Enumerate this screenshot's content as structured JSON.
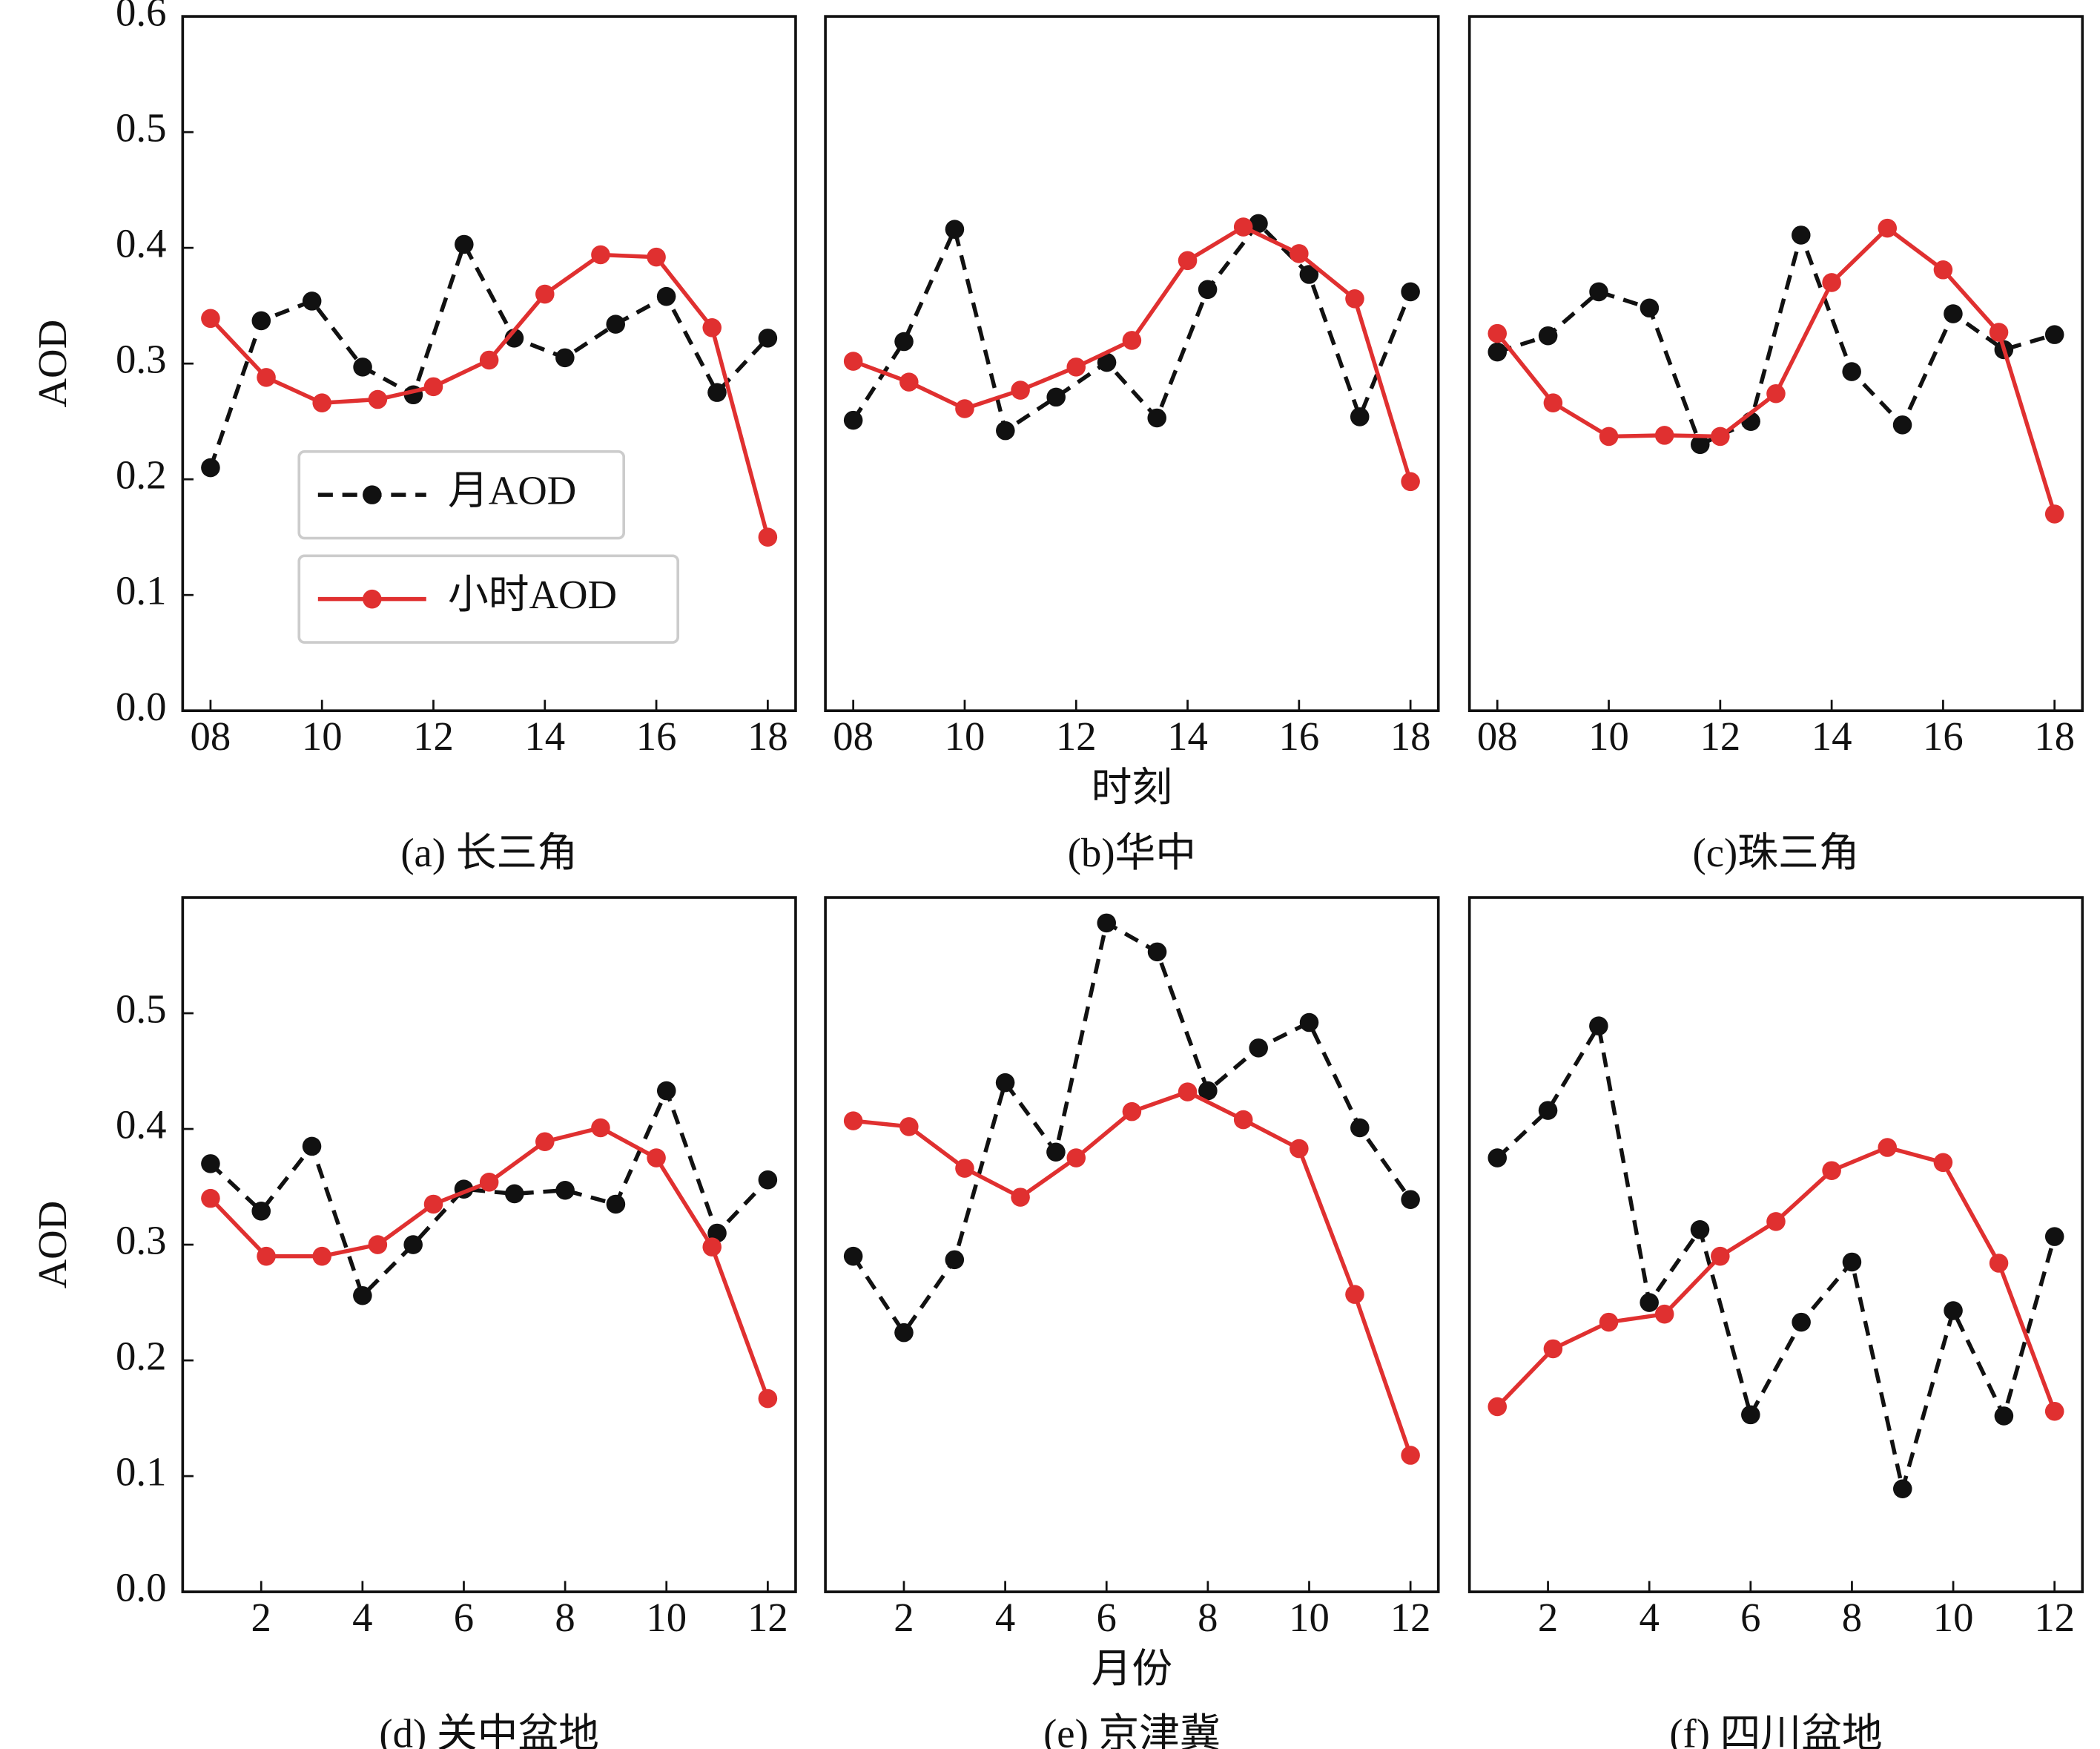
{
  "chart_data": [
    {
      "type": "line",
      "caption": "(a) 长三角",
      "ylabel": "AOD",
      "legend": "center left",
      "xlim": [
        7.5,
        18.5
      ],
      "ylim": [
        0,
        0.6
      ],
      "xticks": [
        {
          "value": 8,
          "label": "08"
        },
        10,
        12,
        14,
        16,
        18
      ],
      "yticks": [
        {
          "value": 0,
          "label": "0.0"
        },
        0.1,
        0.2,
        0.3,
        0.4,
        0.5,
        0.6
      ],
      "series": [
        {
          "name": "月AOD",
          "color": "#111111",
          "linestyle": "dashed",
          "x": [
            8,
            8.91,
            9.82,
            10.73,
            11.64,
            12.55,
            13.45,
            14.36,
            15.27,
            16.18,
            17.09,
            18
          ],
          "values": [
            0.21,
            0.337,
            0.354,
            0.297,
            0.273,
            0.403,
            0.322,
            0.305,
            0.334,
            0.358,
            0.275,
            0.322
          ]
        },
        {
          "name": "小时AOD",
          "color": "#e03030",
          "linestyle": "solid",
          "x": [
            8,
            9,
            10,
            11,
            12,
            13,
            14,
            15,
            16,
            17,
            18
          ],
          "values": [
            0.339,
            0.288,
            0.266,
            0.269,
            0.28,
            0.303,
            0.36,
            0.394,
            0.392,
            0.331,
            0.15
          ]
        }
      ]
    },
    {
      "type": "line",
      "caption": "(b)华中",
      "xlabel": "时刻",
      "xlim": [
        7.5,
        18.5
      ],
      "ylim": [
        0,
        0.6
      ],
      "xticks": [
        {
          "value": 8,
          "label": "08"
        },
        10,
        12,
        14,
        16,
        18
      ],
      "series": [
        {
          "name": "月AOD",
          "color": "#111111",
          "linestyle": "dashed",
          "x": [
            8,
            8.91,
            9.82,
            10.73,
            11.64,
            12.55,
            13.45,
            14.36,
            15.27,
            16.18,
            17.09,
            18
          ],
          "values": [
            0.251,
            0.319,
            0.416,
            0.242,
            0.271,
            0.301,
            0.253,
            0.364,
            0.421,
            0.377,
            0.254,
            0.362
          ]
        },
        {
          "name": "小时AOD",
          "color": "#e03030",
          "linestyle": "solid",
          "x": [
            8,
            9,
            10,
            11,
            12,
            13,
            14,
            15,
            16,
            17,
            18
          ],
          "values": [
            0.302,
            0.284,
            0.261,
            0.277,
            0.297,
            0.32,
            0.389,
            0.418,
            0.395,
            0.356,
            0.198
          ]
        }
      ]
    },
    {
      "type": "line",
      "caption": "(c)珠三角",
      "xlim": [
        7.5,
        18.5
      ],
      "ylim": [
        0,
        0.6
      ],
      "xticks": [
        {
          "value": 8,
          "label": "08"
        },
        10,
        12,
        14,
        16,
        18
      ],
      "series": [
        {
          "name": "月AOD",
          "color": "#111111",
          "linestyle": "dashed",
          "x": [
            8,
            8.91,
            9.82,
            10.73,
            11.64,
            12.55,
            13.45,
            14.36,
            15.27,
            16.18,
            17.09,
            18
          ],
          "values": [
            0.31,
            0.324,
            0.362,
            0.348,
            0.23,
            0.25,
            0.411,
            0.293,
            0.247,
            0.343,
            0.312,
            0.325
          ]
        },
        {
          "name": "小时AOD",
          "color": "#e03030",
          "linestyle": "solid",
          "x": [
            8,
            9,
            10,
            11,
            12,
            13,
            14,
            15,
            16,
            17,
            18
          ],
          "values": [
            0.326,
            0.266,
            0.237,
            0.238,
            0.237,
            0.274,
            0.37,
            0.417,
            0.381,
            0.327,
            0.17
          ]
        }
      ]
    },
    {
      "type": "line",
      "caption": "(d) 关中盆地",
      "ylabel": "AOD",
      "xlim": [
        0.45,
        12.55
      ],
      "ylim": [
        0,
        0.6
      ],
      "xticks": [
        2,
        4,
        6,
        8,
        10,
        12
      ],
      "yticks": [
        {
          "value": 0,
          "label": "0.0"
        },
        0.1,
        0.2,
        0.3,
        0.4,
        0.5
      ],
      "series": [
        {
          "name": "月AOD",
          "color": "#111111",
          "linestyle": "dashed",
          "x": [
            1,
            2,
            3,
            4,
            5,
            6,
            7,
            8,
            9,
            10,
            11,
            12
          ],
          "values": [
            0.37,
            0.329,
            0.385,
            0.256,
            0.3,
            0.348,
            0.344,
            0.347,
            0.335,
            0.433,
            0.31,
            0.356
          ]
        },
        {
          "name": "小时AOD",
          "color": "#e03030",
          "linestyle": "solid",
          "x": [
            1,
            2.1,
            3.2,
            4.3,
            5.4,
            6.5,
            7.6,
            8.7,
            9.8,
            10.9,
            12
          ],
          "values": [
            0.34,
            0.29,
            0.29,
            0.3,
            0.335,
            0.354,
            0.389,
            0.401,
            0.375,
            0.298,
            0.167
          ]
        }
      ]
    },
    {
      "type": "line",
      "caption": "(e) 京津冀",
      "xlabel": "月份",
      "xlim": [
        0.45,
        12.55
      ],
      "ylim": [
        0,
        0.6
      ],
      "xticks": [
        2,
        4,
        6,
        8,
        10,
        12
      ],
      "series": [
        {
          "name": "月AOD",
          "color": "#111111",
          "linestyle": "dashed",
          "x": [
            1,
            2,
            3,
            4,
            5,
            6,
            7,
            8,
            9,
            10,
            11,
            12
          ],
          "values": [
            0.29,
            0.224,
            0.287,
            0.44,
            0.38,
            0.578,
            0.553,
            0.433,
            0.47,
            0.492,
            0.401,
            0.339
          ]
        },
        {
          "name": "小时AOD",
          "color": "#e03030",
          "linestyle": "solid",
          "x": [
            1,
            2.1,
            3.2,
            4.3,
            5.4,
            6.5,
            7.6,
            8.7,
            9.8,
            10.9,
            12
          ],
          "values": [
            0.407,
            0.402,
            0.366,
            0.341,
            0.375,
            0.415,
            0.432,
            0.408,
            0.383,
            0.257,
            0.118
          ]
        }
      ]
    },
    {
      "type": "line",
      "caption": "(f) 四川盆地",
      "xlim": [
        0.45,
        12.55
      ],
      "ylim": [
        0,
        0.6
      ],
      "xticks": [
        2,
        4,
        6,
        8,
        10,
        12
      ],
      "series": [
        {
          "name": "月AOD",
          "color": "#111111",
          "linestyle": "dashed",
          "x": [
            1,
            2,
            3,
            4,
            5,
            6,
            7,
            8,
            9,
            10,
            11,
            12
          ],
          "values": [
            0.375,
            0.416,
            0.489,
            0.25,
            0.313,
            0.153,
            0.233,
            0.285,
            0.089,
            0.243,
            0.152,
            0.307
          ]
        },
        {
          "name": "小时AOD",
          "color": "#e03030",
          "linestyle": "solid",
          "x": [
            1,
            2.1,
            3.2,
            4.3,
            5.4,
            6.5,
            7.6,
            8.7,
            9.8,
            10.9,
            12
          ],
          "values": [
            0.16,
            0.21,
            0.233,
            0.24,
            0.29,
            0.32,
            0.364,
            0.384,
            0.371,
            0.284,
            0.156
          ]
        }
      ]
    }
  ]
}
